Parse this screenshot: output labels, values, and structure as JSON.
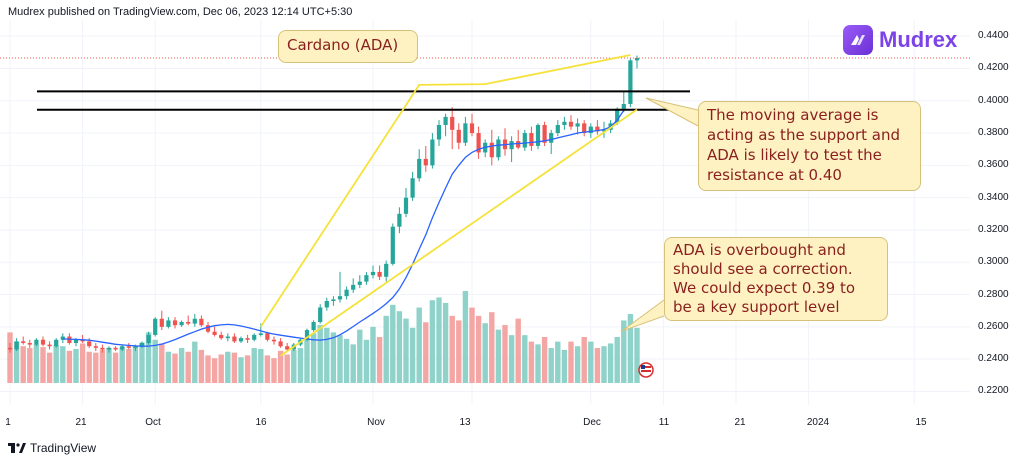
{
  "header": {
    "published": "Mudrex published on TradingView.com, Dec 06, 2023 12:14 UTC+5:30"
  },
  "brand": {
    "name": "Mudrex",
    "color": "#7b43e8"
  },
  "footer": {
    "logo_text": "TradingView"
  },
  "annotations": {
    "title": "Cardano (ADA)",
    "note_ma": [
      "The moving average is",
      "acting as the support and",
      "ADA is likely to test the",
      "resistance at 0.40"
    ],
    "note_overbought": [
      "ADA is overbought and",
      "should see a correction.",
      "We could expect 0.39 to",
      "be a key support level"
    ]
  },
  "colors": {
    "up": "#26a69a",
    "down": "#ef5350",
    "ma": "#2962ff",
    "trend": "#f5e23a",
    "level": "#000000",
    "price_line": "#ef5350"
  },
  "chart_data": {
    "type": "candlestick",
    "symbol": "Cardano (ADA)",
    "y_ticks": [
      "0.4400",
      "0.4200",
      "0.4000",
      "0.3800",
      "0.3600",
      "0.3400",
      "0.3200",
      "0.3000",
      "0.2800",
      "0.2600",
      "0.2400",
      "0.2200"
    ],
    "y_range": [
      0.2147,
      0.45
    ],
    "x_ticks": [
      "1",
      "21",
      "Oct",
      "16",
      "Nov",
      "13",
      "Dec",
      "11",
      "21",
      "2024",
      "15"
    ],
    "resistance_levels": [
      0.4058,
      0.3944
    ],
    "current_price": 0.4265,
    "candles": [
      [
        0.247,
        0.25,
        0.244,
        0.246
      ],
      [
        0.246,
        0.253,
        0.245,
        0.251
      ],
      [
        0.251,
        0.254,
        0.249,
        0.25
      ],
      [
        0.25,
        0.252,
        0.247,
        0.249
      ],
      [
        0.249,
        0.253,
        0.248,
        0.252
      ],
      [
        0.252,
        0.254,
        0.248,
        0.249
      ],
      [
        0.249,
        0.251,
        0.246,
        0.248
      ],
      [
        0.248,
        0.253,
        0.247,
        0.252
      ],
      [
        0.252,
        0.256,
        0.25,
        0.254
      ],
      [
        0.254,
        0.256,
        0.249,
        0.25
      ],
      [
        0.25,
        0.253,
        0.248,
        0.252
      ],
      [
        0.252,
        0.255,
        0.25,
        0.251
      ],
      [
        0.251,
        0.253,
        0.247,
        0.248
      ],
      [
        0.248,
        0.25,
        0.245,
        0.247
      ],
      [
        0.247,
        0.249,
        0.244,
        0.246
      ],
      [
        0.246,
        0.248,
        0.244,
        0.247
      ],
      [
        0.247,
        0.248,
        0.245,
        0.246
      ],
      [
        0.246,
        0.249,
        0.245,
        0.248
      ],
      [
        0.248,
        0.25,
        0.246,
        0.247
      ],
      [
        0.247,
        0.249,
        0.245,
        0.248
      ],
      [
        0.248,
        0.251,
        0.247,
        0.25
      ],
      [
        0.25,
        0.257,
        0.249,
        0.255
      ],
      [
        0.255,
        0.266,
        0.254,
        0.265
      ],
      [
        0.265,
        0.27,
        0.258,
        0.26
      ],
      [
        0.26,
        0.266,
        0.259,
        0.264
      ],
      [
        0.264,
        0.266,
        0.259,
        0.261
      ],
      [
        0.261,
        0.264,
        0.26,
        0.263
      ],
      [
        0.263,
        0.267,
        0.261,
        0.262
      ],
      [
        0.262,
        0.268,
        0.26,
        0.265
      ],
      [
        0.265,
        0.267,
        0.26,
        0.261
      ],
      [
        0.261,
        0.263,
        0.256,
        0.257
      ],
      [
        0.257,
        0.26,
        0.254,
        0.255
      ],
      [
        0.255,
        0.257,
        0.252,
        0.253
      ],
      [
        0.253,
        0.256,
        0.251,
        0.254
      ],
      [
        0.254,
        0.256,
        0.25,
        0.251
      ],
      [
        0.251,
        0.254,
        0.25,
        0.253
      ],
      [
        0.253,
        0.255,
        0.25,
        0.252
      ],
      [
        0.252,
        0.256,
        0.251,
        0.255
      ],
      [
        0.255,
        0.262,
        0.254,
        0.256
      ],
      [
        0.256,
        0.257,
        0.251,
        0.252
      ],
      [
        0.252,
        0.254,
        0.249,
        0.251
      ],
      [
        0.251,
        0.253,
        0.247,
        0.248
      ],
      [
        0.248,
        0.25,
        0.245,
        0.246
      ],
      [
        0.246,
        0.25,
        0.245,
        0.249
      ],
      [
        0.249,
        0.253,
        0.248,
        0.252
      ],
      [
        0.252,
        0.259,
        0.251,
        0.258
      ],
      [
        0.258,
        0.264,
        0.257,
        0.263
      ],
      [
        0.263,
        0.274,
        0.262,
        0.272
      ],
      [
        0.272,
        0.278,
        0.27,
        0.276
      ],
      [
        0.276,
        0.279,
        0.273,
        0.277
      ],
      [
        0.277,
        0.294,
        0.275,
        0.279
      ],
      [
        0.279,
        0.285,
        0.277,
        0.283
      ],
      [
        0.283,
        0.29,
        0.281,
        0.286
      ],
      [
        0.286,
        0.292,
        0.284,
        0.288
      ],
      [
        0.288,
        0.294,
        0.286,
        0.292
      ],
      [
        0.292,
        0.298,
        0.29,
        0.294
      ],
      [
        0.294,
        0.298,
        0.289,
        0.291
      ],
      [
        0.291,
        0.301,
        0.288,
        0.299
      ],
      [
        0.299,
        0.324,
        0.298,
        0.322
      ],
      [
        0.322,
        0.334,
        0.318,
        0.33
      ],
      [
        0.33,
        0.346,
        0.328,
        0.34
      ],
      [
        0.34,
        0.356,
        0.338,
        0.352
      ],
      [
        0.352,
        0.37,
        0.35,
        0.364
      ],
      [
        0.364,
        0.372,
        0.356,
        0.36
      ],
      [
        0.36,
        0.38,
        0.358,
        0.376
      ],
      [
        0.376,
        0.388,
        0.372,
        0.385
      ],
      [
        0.385,
        0.392,
        0.378,
        0.39
      ],
      [
        0.39,
        0.396,
        0.37,
        0.382
      ],
      [
        0.382,
        0.386,
        0.37,
        0.374
      ],
      [
        0.374,
        0.39,
        0.372,
        0.386
      ],
      [
        0.386,
        0.392,
        0.378,
        0.38
      ],
      [
        0.38,
        0.384,
        0.364,
        0.368
      ],
      [
        0.368,
        0.376,
        0.365,
        0.374
      ],
      [
        0.374,
        0.382,
        0.36,
        0.365
      ],
      [
        0.365,
        0.378,
        0.363,
        0.376
      ],
      [
        0.376,
        0.383,
        0.366,
        0.37
      ],
      [
        0.37,
        0.378,
        0.362,
        0.375
      ],
      [
        0.375,
        0.382,
        0.37,
        0.371
      ],
      [
        0.371,
        0.382,
        0.369,
        0.38
      ],
      [
        0.38,
        0.384,
        0.369,
        0.372
      ],
      [
        0.372,
        0.386,
        0.37,
        0.385
      ],
      [
        0.385,
        0.387,
        0.372,
        0.374
      ],
      [
        0.374,
        0.382,
        0.367,
        0.38
      ],
      [
        0.38,
        0.388,
        0.378,
        0.385
      ],
      [
        0.385,
        0.39,
        0.382,
        0.387
      ],
      [
        0.387,
        0.391,
        0.382,
        0.384
      ],
      [
        0.384,
        0.389,
        0.379,
        0.386
      ],
      [
        0.386,
        0.388,
        0.378,
        0.38
      ],
      [
        0.38,
        0.386,
        0.377,
        0.384
      ],
      [
        0.384,
        0.388,
        0.379,
        0.381
      ],
      [
        0.381,
        0.387,
        0.377,
        0.382
      ],
      [
        0.382,
        0.388,
        0.38,
        0.386
      ],
      [
        0.386,
        0.396,
        0.385,
        0.395
      ],
      [
        0.395,
        0.406,
        0.393,
        0.398
      ],
      [
        0.398,
        0.426,
        0.396,
        0.425
      ],
      [
        0.425,
        0.428,
        0.42,
        0.4265
      ]
    ],
    "ma_start_index": 8,
    "moving_average": [
      0.2525,
      0.2524,
      0.2522,
      0.252,
      0.2517,
      0.2512,
      0.2505,
      0.2499,
      0.2492,
      0.2488,
      0.2485,
      0.2482,
      0.248,
      0.2481,
      0.2485,
      0.2493,
      0.2506,
      0.2521,
      0.2538,
      0.2555,
      0.257,
      0.2586,
      0.2598,
      0.2607,
      0.2612,
      0.2615,
      0.2612,
      0.2605,
      0.2596,
      0.2586,
      0.2575,
      0.2564,
      0.2555,
      0.2548,
      0.2542,
      0.2536,
      0.253,
      0.2525,
      0.252,
      0.2518,
      0.2522,
      0.2532,
      0.2551,
      0.2575,
      0.2602,
      0.263,
      0.2656,
      0.2683,
      0.2711,
      0.2744,
      0.2782,
      0.2835,
      0.2905,
      0.2987,
      0.308,
      0.317,
      0.3275,
      0.337,
      0.346,
      0.3545,
      0.36,
      0.365,
      0.368,
      0.37,
      0.3712,
      0.372,
      0.3725,
      0.3728,
      0.3732,
      0.3735,
      0.3738,
      0.3742,
      0.3746,
      0.3752,
      0.376,
      0.377,
      0.378,
      0.379,
      0.38,
      0.3806,
      0.381,
      0.3815,
      0.3822,
      0.3838,
      0.388,
      0.394
    ],
    "volume": [
      0.55,
      0.45,
      0.4,
      0.38,
      0.42,
      0.39,
      0.33,
      0.41,
      0.4,
      0.35,
      0.37,
      0.43,
      0.34,
      0.33,
      0.36,
      0.38,
      0.33,
      0.39,
      0.37,
      0.4,
      0.44,
      0.55,
      0.47,
      0.43,
      0.34,
      0.32,
      0.38,
      0.34,
      0.45,
      0.36,
      0.3,
      0.27,
      0.31,
      0.34,
      0.33,
      0.28,
      0.3,
      0.38,
      0.37,
      0.3,
      0.27,
      0.35,
      0.31,
      0.36,
      0.38,
      0.48,
      0.54,
      0.63,
      0.6,
      0.55,
      0.52,
      0.48,
      0.42,
      0.58,
      0.47,
      0.61,
      0.5,
      0.73,
      0.85,
      0.78,
      0.7,
      0.6,
      0.82,
      0.66,
      0.9,
      0.93,
      0.87,
      0.73,
      0.68,
      1.0,
      0.82,
      0.73,
      0.65,
      0.77,
      0.58,
      0.63,
      0.52,
      0.7,
      0.52,
      0.45,
      0.42,
      0.5,
      0.38,
      0.45,
      0.36,
      0.45,
      0.4,
      0.5,
      0.45,
      0.38,
      0.4,
      0.43,
      0.5,
      0.68,
      0.75,
      0.6
    ],
    "trend_upper": [
      [
        0.26,
        0.4098
      ],
      [
        0.4103,
        0.4283
      ]
    ],
    "trend_lower": [
      [
        0.2421,
        0.3946
      ]
    ]
  }
}
